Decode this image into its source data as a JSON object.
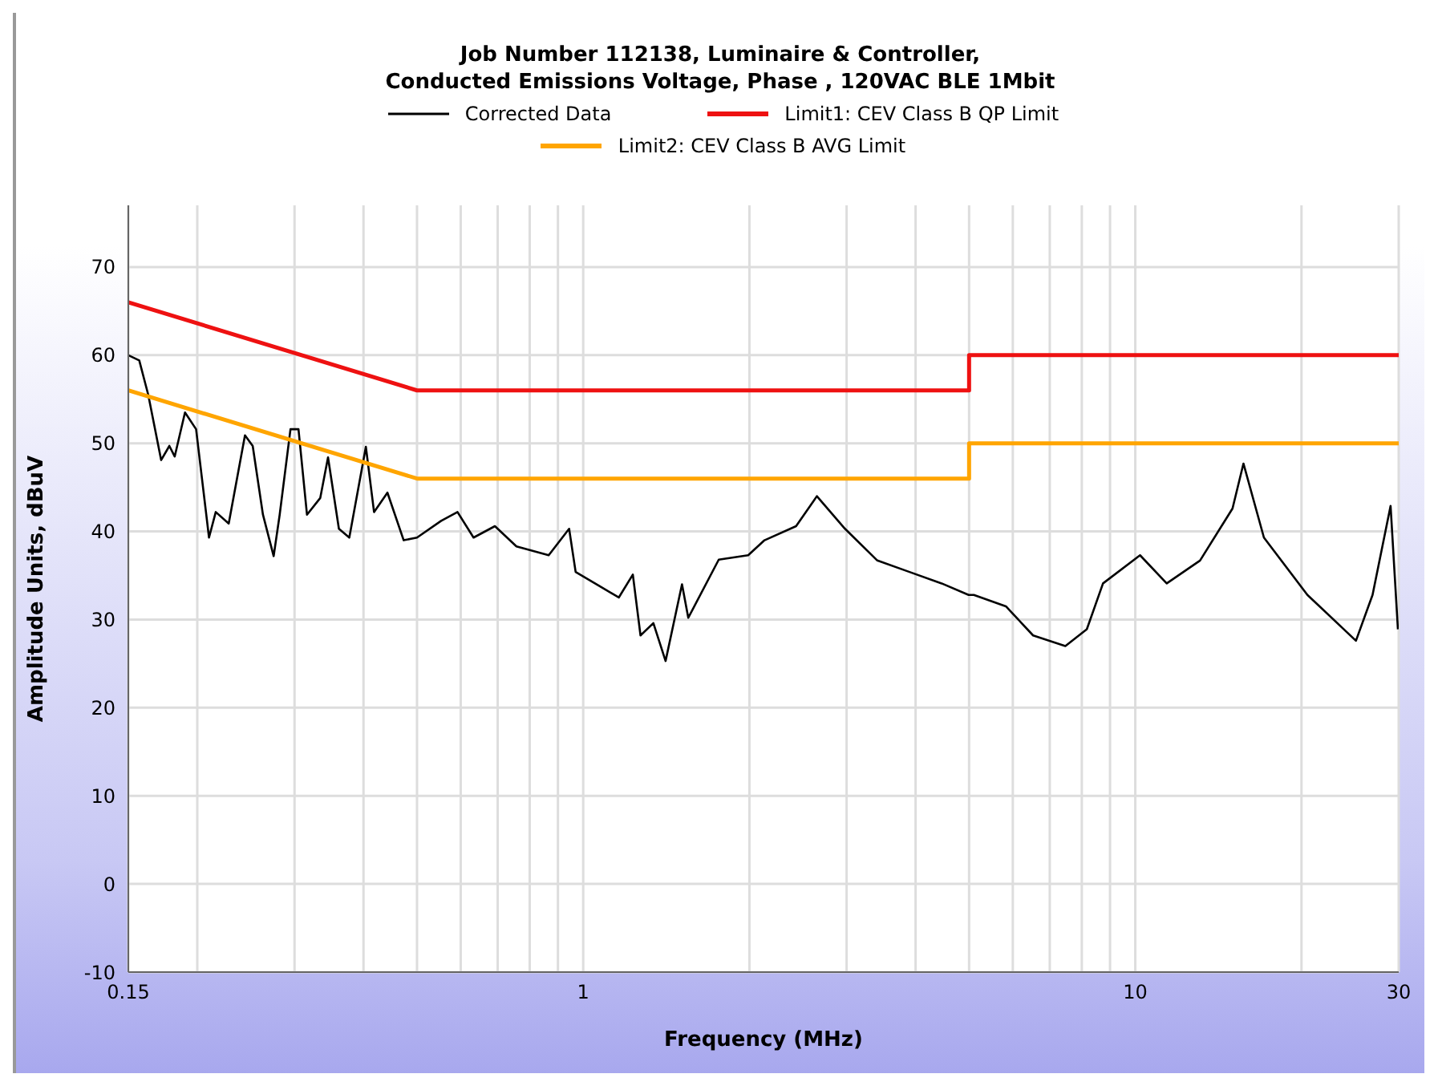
{
  "chart_data": {
    "type": "line",
    "title": "Job Number 112138, Luminaire & Controller,\nConducted Emissions Voltage, Phase , 120VAC BLE 1Mbit",
    "xlabel": "Frequency (MHz)",
    "ylabel": "Amplitude Units, dBuV",
    "log": "x",
    "xlim": [
      0.15,
      30
    ],
    "ylim": [
      -10,
      77
    ],
    "xticks": [
      0.15,
      {
        "value": 0.2,
        "label": null
      },
      {
        "value": 0.3,
        "label": null
      },
      {
        "value": 0.4,
        "label": null
      },
      {
        "value": 0.5,
        "label": null
      },
      {
        "value": 0.6,
        "label": null
      },
      {
        "value": 0.7,
        "label": null
      },
      {
        "value": 0.8,
        "label": null
      },
      {
        "value": 0.9,
        "label": null
      },
      1,
      {
        "value": 2,
        "label": null
      },
      {
        "value": 3,
        "label": null
      },
      {
        "value": 4,
        "label": null
      },
      {
        "value": 5,
        "label": null
      },
      {
        "value": 6,
        "label": null
      },
      {
        "value": 7,
        "label": null
      },
      {
        "value": 8,
        "label": null
      },
      {
        "value": 9,
        "label": null
      },
      10,
      {
        "value": 20,
        "label": null
      },
      30
    ],
    "yticks": [
      -10,
      0,
      10,
      20,
      30,
      40,
      50,
      60,
      70
    ],
    "grid": true,
    "legend": "top",
    "marker": "none",
    "line_style": "solid",
    "series": [
      {
        "name": "Corrected Data",
        "color": "#000000",
        "x": [
          0.15,
          0.157,
          0.163,
          0.172,
          0.178,
          0.182,
          0.19,
          0.199,
          0.21,
          0.216,
          0.228,
          0.244,
          0.252,
          0.263,
          0.275,
          0.282,
          0.295,
          0.305,
          0.316,
          0.334,
          0.345,
          0.361,
          0.377,
          0.404,
          0.418,
          0.442,
          0.473,
          0.5,
          0.553,
          0.592,
          0.633,
          0.692,
          0.757,
          0.866,
          0.943,
          0.969,
          1.07,
          1.16,
          1.23,
          1.27,
          1.34,
          1.41,
          1.51,
          1.55,
          1.76,
          1.99,
          2.13,
          2.43,
          2.65,
          2.98,
          3.41,
          3.9,
          4.46,
          4.99,
          5.1,
          5.83,
          6.53,
          7.47,
          8.17,
          8.74,
          10.2,
          11.4,
          13.1,
          15,
          15.7,
          17.1,
          20.5,
          25.1,
          26.9,
          29,
          29.9
        ],
        "values": [
          60,
          59.4,
          55.5,
          48.1,
          49.7,
          48.5,
          53.5,
          51.6,
          39.3,
          42.2,
          40.9,
          50.9,
          49.7,
          41.9,
          37.2,
          41.9,
          51.6,
          51.6,
          41.9,
          43.8,
          48.4,
          40.3,
          39.3,
          49.6,
          42.2,
          44.4,
          39,
          39.3,
          41.2,
          42.2,
          39.3,
          40.6,
          38.3,
          37.3,
          40.3,
          35.4,
          33.8,
          32.5,
          35.1,
          28.2,
          29.6,
          25.3,
          34,
          30.2,
          36.8,
          37.3,
          39,
          40.6,
          44,
          40.3,
          36.7,
          35.4,
          34.1,
          32.8,
          32.8,
          31.5,
          28.2,
          27,
          28.9,
          34.1,
          37.3,
          34.1,
          36.7,
          42.6,
          47.7,
          39.3,
          32.8,
          27.6,
          32.8,
          42.9,
          28.9
        ]
      },
      {
        "name": "Limit1: CEV Class B QP Limit",
        "color": "#ee1111",
        "x": [
          0.15,
          0.5,
          5,
          5,
          30
        ],
        "values": [
          66,
          56,
          56,
          60,
          60
        ]
      },
      {
        "name": "Limit2: CEV Class B AVG Limit",
        "color": "#ffa500",
        "x": [
          0.15,
          0.5,
          5,
          5,
          30
        ],
        "values": [
          56,
          46,
          46,
          50,
          50
        ]
      }
    ]
  }
}
